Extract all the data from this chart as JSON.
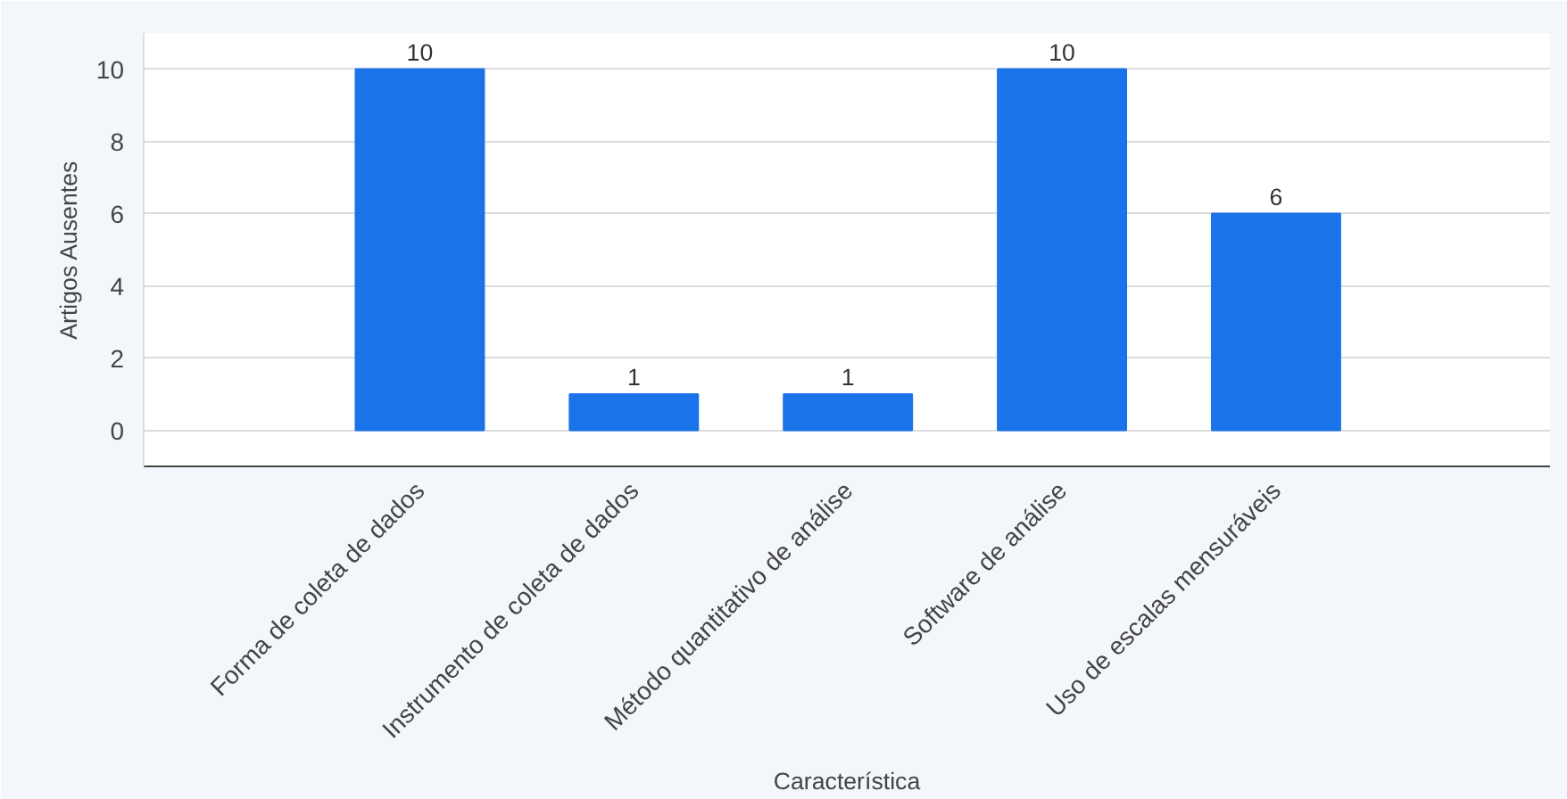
{
  "chart_data": {
    "type": "bar",
    "xlabel": "Característica",
    "ylabel": "Artigos Ausentes",
    "categories": [
      "Forma de coleta de dados",
      "Instrumento de coleta de dados",
      "Método quantitativo de análise",
      "Software de análise",
      "Uso de escalas mensuráveis"
    ],
    "values": [
      10,
      1,
      1,
      10,
      6
    ],
    "color": "#1a73e8",
    "ylim": [
      -1,
      11
    ],
    "yticks": [
      0,
      2,
      4,
      6,
      8,
      10
    ],
    "grid": "y",
    "data_labels": true
  }
}
